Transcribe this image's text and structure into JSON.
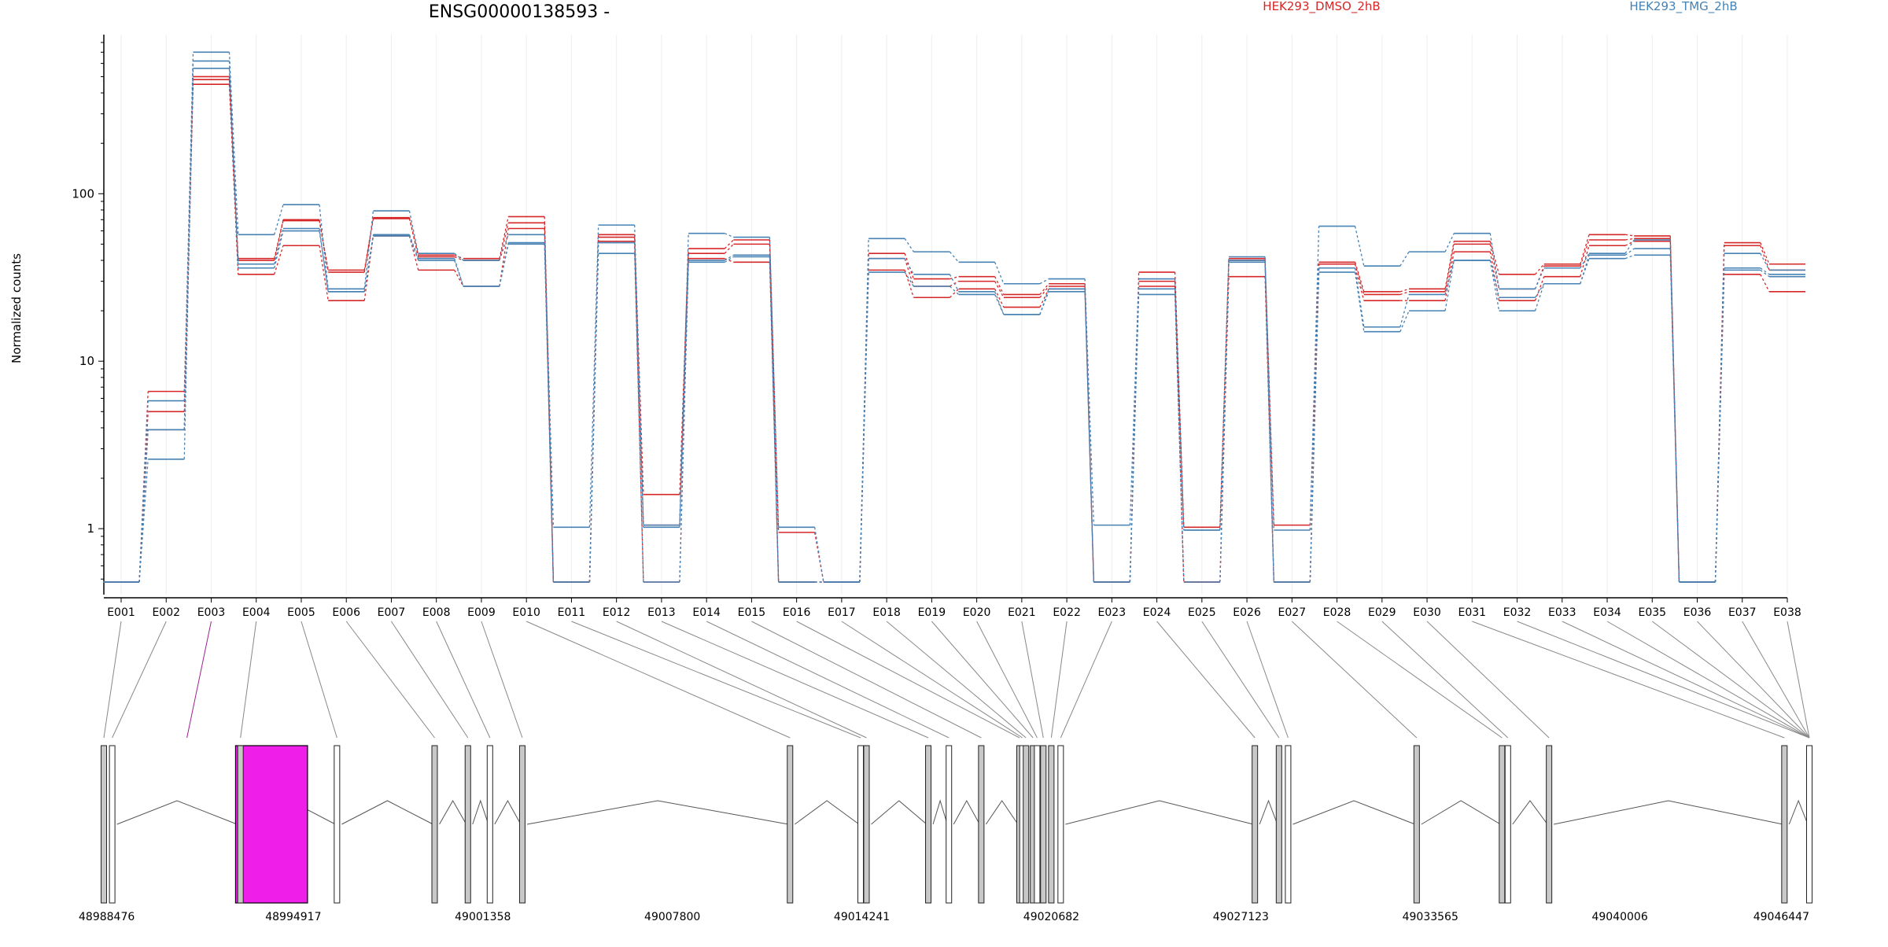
{
  "chart_data": {
    "type": "line",
    "title": "ENSG00000138593 -",
    "xlabel": "",
    "ylabel": "Normalized counts",
    "yscale": "log",
    "ylim": [
      0.48,
      800
    ],
    "grid": true,
    "legend_placement": "top-right",
    "y_ticks": [
      1,
      10,
      100
    ],
    "y_tick_labels": [
      "1",
      "10",
      "100"
    ],
    "categories": [
      "E001",
      "E002",
      "E003",
      "E004",
      "E005",
      "E006",
      "E007",
      "E008",
      "E009",
      "E010",
      "E011",
      "E012",
      "E013",
      "E014",
      "E015",
      "E016",
      "E017",
      "E018",
      "E019",
      "E020",
      "E021",
      "E022",
      "E023",
      "E024",
      "E025",
      "E026",
      "E027",
      "E028",
      "E029",
      "E030",
      "E031",
      "E032",
      "E033",
      "E034",
      "E035",
      "E036",
      "E037",
      "E038"
    ],
    "series": [
      {
        "name": "HEK293_DMSO_2hB",
        "color": "#d62728",
        "values": [
          0.48,
          6.6,
          500,
          41,
          70,
          35,
          72,
          43,
          41,
          73,
          0.48,
          57,
          1.6,
          47,
          53,
          0.95,
          0.48,
          44,
          31,
          32,
          25,
          29,
          0.48,
          34,
          1.02,
          41,
          1.05,
          39,
          26,
          27,
          52,
          33,
          38,
          57,
          56,
          0.48,
          51,
          38
        ]
      },
      {
        "name": "HEK293_DMSO_2hB",
        "color": "#d62728",
        "values": [
          0.48,
          5.0,
          480,
          40,
          69,
          34,
          71,
          42,
          40,
          67,
          0.48,
          55,
          1.05,
          44,
          50,
          0.48,
          0.48,
          41,
          28,
          30,
          24,
          28,
          0.48,
          30,
          0.48,
          40,
          0.48,
          38,
          25,
          26,
          50,
          27,
          37,
          53,
          54,
          0.48,
          49,
          35
        ]
      },
      {
        "name": "HEK293_DMSO_2hB",
        "color": "#d62728",
        "values": [
          0.48,
          3.9,
          450,
          33,
          49,
          23,
          56,
          35,
          28,
          62,
          0.48,
          52,
          0.48,
          41,
          39,
          0.48,
          0.48,
          35,
          24,
          27,
          21,
          27,
          0.48,
          28,
          0.48,
          32,
          0.48,
          36,
          23,
          23,
          45,
          23,
          32,
          49,
          52,
          0.48,
          33,
          26
        ]
      },
      {
        "name": "HEK293_TMG_2hB",
        "color": "#4682b4",
        "values": [
          0.48,
          5.8,
          700,
          57,
          86,
          27,
          79,
          44,
          40,
          57,
          1.02,
          65,
          1.05,
          58,
          55,
          1.02,
          0.48,
          54,
          45,
          39,
          29,
          31,
          1.05,
          31,
          0.98,
          42,
          0.98,
          64,
          37,
          45,
          58,
          27,
          36,
          44,
          53,
          0.48,
          44,
          35
        ]
      },
      {
        "name": "HEK293_TMG_2hB",
        "color": "#4682b4",
        "values": [
          0.48,
          3.9,
          620,
          38,
          62,
          26,
          57,
          41,
          28,
          51,
          0.48,
          51,
          1.02,
          40,
          43,
          0.48,
          0.48,
          41,
          33,
          26,
          19,
          27,
          0.48,
          27,
          0.98,
          40,
          0.48,
          36,
          16,
          25,
          40,
          24,
          29,
          43,
          47,
          0.48,
          36,
          33
        ]
      },
      {
        "name": "HEK293_TMG_2hB",
        "color": "#4682b4",
        "values": [
          0.48,
          2.6,
          560,
          36,
          60,
          26,
          56,
          40,
          28,
          50,
          0.48,
          44,
          0.48,
          39,
          42,
          0.48,
          0.48,
          34,
          28,
          25,
          19,
          26,
          0.48,
          25,
          0.48,
          39,
          0.48,
          34,
          15,
          20,
          40,
          20,
          29,
          41,
          43,
          0.48,
          35,
          32
        ]
      }
    ],
    "gene_track": {
      "genomic_ticks": [
        "48988476",
        "48994917",
        "49001358",
        "49007800",
        "49014241",
        "49020682",
        "49027123",
        "49033565",
        "49040006",
        "49046447"
      ],
      "range": [
        48988476,
        49046447
      ],
      "exon_bases": [
        48988476,
        48988760,
        48993060,
        48993120,
        48996400,
        48999720,
        49000850,
        49001600,
        49002700,
        49011800,
        49014200,
        49014400,
        49016500,
        49017200,
        49018300,
        49019600,
        49019700,
        49019820,
        49020060,
        49020200,
        49020410,
        49020680,
        49021000,
        49027600,
        49028420,
        49028730,
        49033100,
        49036000,
        49036200,
        49037600,
        49045600,
        49046447
      ],
      "highlighted_exon": "E003",
      "highlight_color": "#f01ee9"
    }
  }
}
